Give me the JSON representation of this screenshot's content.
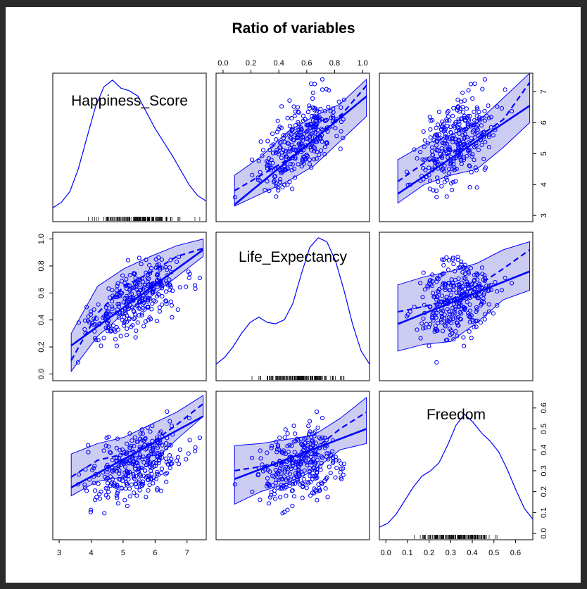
{
  "chart_data": {
    "type": "scatter",
    "title": "Ratio of variables",
    "variables": [
      "Happiness_Score",
      "Life_Expectancy",
      "Freedom"
    ],
    "ranges": {
      "Happiness_Score": [
        2.8,
        7.6
      ],
      "Life_Expectancy": [
        -0.05,
        1.05
      ],
      "Freedom": [
        -0.03,
        0.68
      ]
    },
    "axis_ticks": {
      "Happiness_Score": [
        "3",
        "4",
        "5",
        "6",
        "7"
      ],
      "Life_Expectancy": [
        "0.0",
        "0.2",
        "0.4",
        "0.6",
        "0.8",
        "1.0"
      ],
      "Freedom": [
        "0.0",
        "0.1",
        "0.2",
        "0.3",
        "0.4",
        "0.5",
        "0.6"
      ]
    },
    "tick_values": {
      "Happiness_Score": [
        3,
        4,
        5,
        6,
        7
      ],
      "Life_Expectancy": [
        0,
        0.2,
        0.4,
        0.6,
        0.8,
        1.0
      ],
      "Freedom": [
        0,
        0.1,
        0.2,
        0.3,
        0.4,
        0.5,
        0.6
      ]
    },
    "fits": {
      "Happiness_Score~Life_Expectancy": {
        "linear": [
          3.35,
          6.85
        ],
        "smooth": [
          3.8,
          4.3,
          4.8,
          5.45,
          6.2,
          7.2
        ],
        "band_upper": [
          4.3,
          4.9,
          5.7,
          6.2,
          6.6,
          7.4
        ],
        "band_lower": [
          3.3,
          3.7,
          4.1,
          4.6,
          5.4,
          6.2
        ]
      },
      "Happiness_Score~Freedom": {
        "linear": [
          3.7,
          6.55
        ],
        "smooth": [
          4.1,
          4.7,
          5.0,
          5.5,
          6.1,
          7.3
        ],
        "band_upper": [
          4.8,
          5.3,
          5.6,
          6.0,
          6.8,
          7.6
        ],
        "band_lower": [
          3.4,
          4.0,
          4.3,
          4.5,
          5.2,
          6.0
        ]
      },
      "Life_Expectancy~Happiness_Score": {
        "linear": [
          0.21,
          0.92
        ],
        "smooth": [
          0.1,
          0.45,
          0.65,
          0.75,
          0.87,
          0.93
        ],
        "band_upper": [
          0.3,
          0.65,
          0.78,
          0.87,
          0.95,
          1.0
        ],
        "band_lower": [
          0.02,
          0.28,
          0.45,
          0.57,
          0.72,
          0.87
        ]
      },
      "Life_Expectancy~Freedom": {
        "linear": [
          0.37,
          0.76
        ],
        "smooth": [
          0.46,
          0.5,
          0.55,
          0.65,
          0.78,
          0.92
        ],
        "band_upper": [
          0.66,
          0.72,
          0.76,
          0.82,
          0.92,
          0.98
        ],
        "band_lower": [
          0.17,
          0.22,
          0.24,
          0.38,
          0.55,
          0.62
        ]
      },
      "Freedom~Happiness_Score": {
        "linear": [
          0.22,
          0.56
        ],
        "smooth": [
          0.27,
          0.35,
          0.38,
          0.43,
          0.52,
          0.62
        ],
        "band_upper": [
          0.38,
          0.43,
          0.46,
          0.52,
          0.58,
          0.66
        ],
        "band_lower": [
          0.18,
          0.25,
          0.27,
          0.33,
          0.45,
          0.56
        ]
      },
      "Freedom~Life_Expectancy": {
        "linear": [
          0.26,
          0.5
        ],
        "smooth": [
          0.3,
          0.32,
          0.34,
          0.4,
          0.5,
          0.58
        ],
        "band_upper": [
          0.42,
          0.43,
          0.45,
          0.47,
          0.55,
          0.65
        ],
        "band_lower": [
          0.14,
          0.2,
          0.24,
          0.3,
          0.4,
          0.43
        ]
      }
    },
    "densities": {
      "Happiness_Score": [
        0.03,
        0.07,
        0.15,
        0.32,
        0.55,
        0.78,
        0.93,
        0.98,
        0.92,
        0.9,
        0.86,
        0.74,
        0.62,
        0.52,
        0.42,
        0.31,
        0.2,
        0.12,
        0.08
      ],
      "Life_Expectancy": [
        0.05,
        0.1,
        0.18,
        0.28,
        0.36,
        0.4,
        0.36,
        0.35,
        0.38,
        0.5,
        0.72,
        0.92,
        0.99,
        0.96,
        0.82,
        0.6,
        0.35,
        0.15,
        0.05
      ],
      "Freedom": [
        0.02,
        0.05,
        0.12,
        0.22,
        0.32,
        0.4,
        0.44,
        0.5,
        0.63,
        0.78,
        0.86,
        0.8,
        0.72,
        0.66,
        0.58,
        0.45,
        0.3,
        0.16,
        0.08
      ]
    },
    "n_points": 315,
    "xlabel": "",
    "ylabel": "",
    "color": "#0000ff",
    "fill": "#ccccf2"
  }
}
